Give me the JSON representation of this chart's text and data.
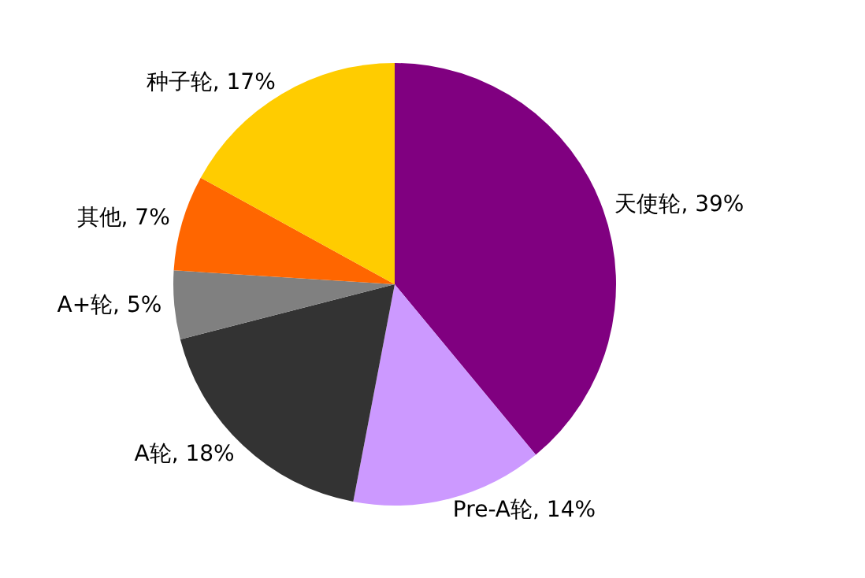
{
  "chart_data": {
    "type": "pie",
    "categories": [
      "天使轮",
      "Pre-A轮",
      "A轮",
      "A+轮",
      "其他",
      "种子轮"
    ],
    "values": [
      39,
      14,
      18,
      5,
      7,
      17
    ],
    "value_labels": [
      "39%",
      "14%",
      "18%",
      "5%",
      "7%",
      "17%"
    ],
    "colors": [
      "#800080",
      "#cc99ff",
      "#333333",
      "#808080",
      "#ff6600",
      "#ffcc00"
    ],
    "legend": false
  }
}
